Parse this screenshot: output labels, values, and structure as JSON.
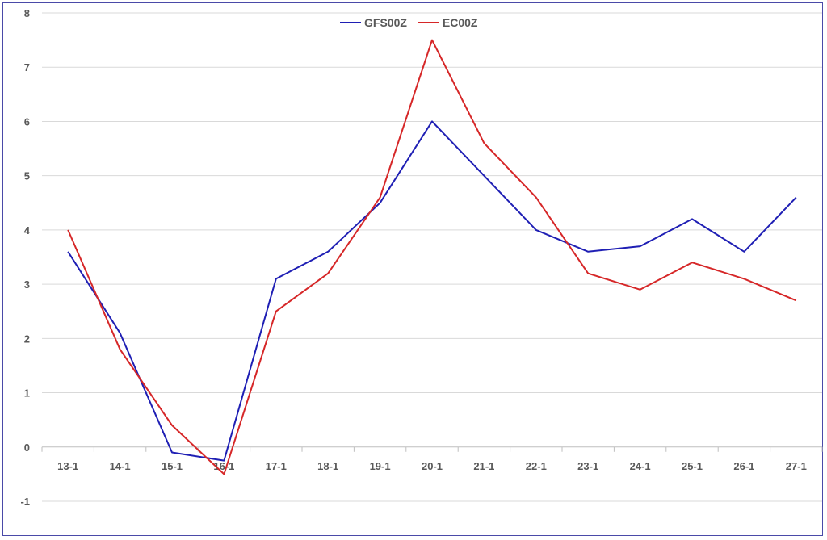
{
  "chart_data": {
    "type": "line",
    "title": "",
    "xlabel": "",
    "ylabel": "",
    "categories": [
      "13-1",
      "14-1",
      "15-1",
      "16-1",
      "17-1",
      "18-1",
      "19-1",
      "20-1",
      "21-1",
      "22-1",
      "23-1",
      "24-1",
      "25-1",
      "26-1",
      "27-1"
    ],
    "ylim": [
      -1,
      8
    ],
    "yticks": [
      -1,
      0,
      1,
      2,
      3,
      4,
      5,
      6,
      7,
      8
    ],
    "grid": true,
    "legend_position": "top-center",
    "series": [
      {
        "name": "GFS00Z",
        "color": "#1f1fb4",
        "values": [
          3.6,
          2.1,
          -0.1,
          -0.25,
          3.1,
          3.6,
          4.5,
          6.0,
          5.0,
          4.0,
          3.6,
          3.7,
          4.2,
          3.6,
          4.6
        ]
      },
      {
        "name": "EC00Z",
        "color": "#d62728",
        "values": [
          4.0,
          1.8,
          0.4,
          -0.5,
          2.5,
          3.2,
          4.6,
          7.5,
          5.6,
          4.6,
          3.2,
          2.9,
          3.4,
          3.1,
          2.7
        ]
      }
    ],
    "colors": {
      "grid": "#d9d9d9",
      "axis": "#bfbfbf",
      "frame": "#4a4aa8"
    }
  }
}
